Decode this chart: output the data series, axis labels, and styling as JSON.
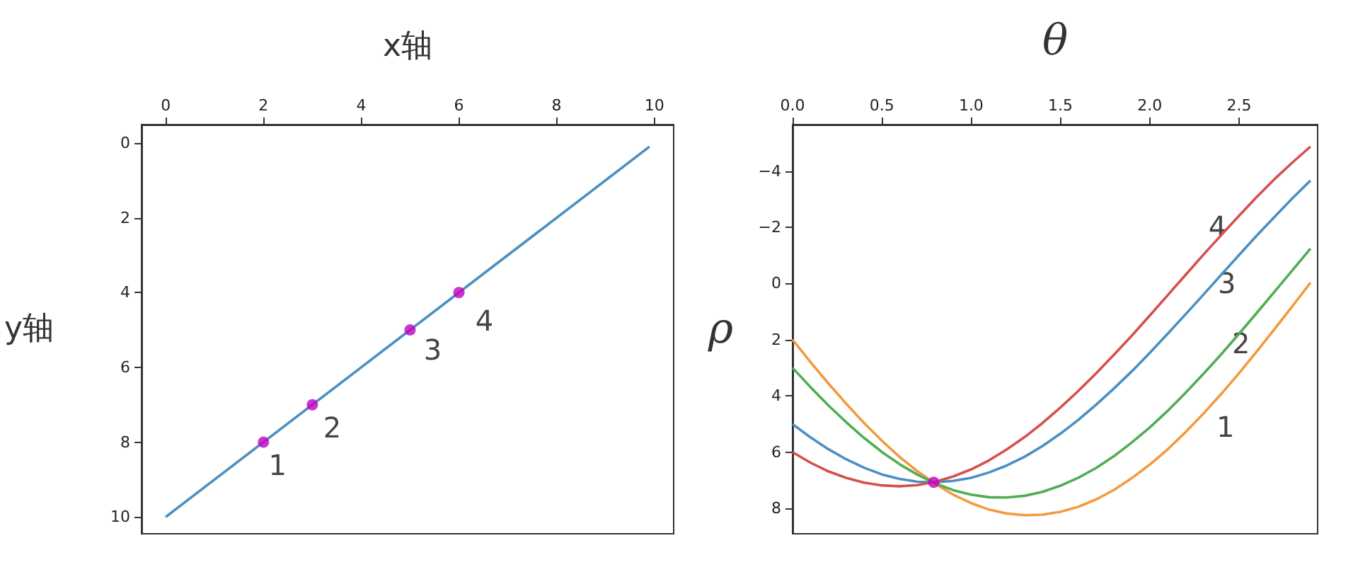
{
  "chart_data": [
    {
      "type": "line",
      "xlabel": "x轴",
      "ylabel": "y轴",
      "xlim": [
        -0.495,
        10.395
      ],
      "ylim": [
        10.45,
        -0.49
      ],
      "xticks": [
        0,
        2,
        4,
        6,
        8,
        10
      ],
      "yticks": [
        0,
        2,
        4,
        6,
        8,
        10
      ],
      "grid": false,
      "series": [
        {
          "color": "#4a90c2",
          "marker": "none",
          "x": [
            0,
            9.9
          ],
          "values": [
            10,
            0.1
          ]
        },
        {
          "type": "scatter",
          "color": "#c000c0",
          "marker": "circle",
          "x": [
            2,
            3,
            5,
            6
          ],
          "values": [
            8,
            7,
            5,
            4
          ]
        }
      ],
      "annotations": [
        {
          "text": "1",
          "x": 2,
          "y": 8
        },
        {
          "text": "2",
          "x": 3,
          "y": 7
        },
        {
          "text": "3",
          "x": 5,
          "y": 5
        },
        {
          "text": "4",
          "x": 6,
          "y": 4
        }
      ]
    },
    {
      "type": "line",
      "xlabel": "θ",
      "ylabel": "ρ",
      "xlim": [
        0,
        2.94
      ],
      "ylim": [
        8.9,
        -5.65
      ],
      "xticks": [
        {
          "value": 0,
          "label": "0.0"
        },
        {
          "value": 0.5,
          "label": "0.5"
        },
        {
          "value": 1,
          "label": "1.0"
        },
        {
          "value": 1.5,
          "label": "1.5"
        },
        {
          "value": 2,
          "label": "2.0"
        },
        {
          "value": 2.5,
          "label": "2.5"
        }
      ],
      "yticks": [
        {
          "value": -4,
          "label": "−4"
        },
        {
          "value": -2,
          "label": "−2"
        },
        0,
        2,
        4,
        6,
        8
      ],
      "grid": false,
      "x": [
        0,
        0.1,
        0.2,
        0.3,
        0.4,
        0.5,
        0.6,
        0.7,
        0.8,
        0.9,
        1.0,
        1.1,
        1.2,
        1.3,
        1.4,
        1.5,
        1.6,
        1.7,
        1.8,
        1.9,
        2.0,
        2.1,
        2.2,
        2.3,
        2.4,
        2.5,
        2.6,
        2.7,
        2.8,
        2.9
      ],
      "series": [
        {
          "color": "#f39a3e",
          "marker": "none",
          "values": [
            2,
            2.79,
            3.55,
            4.27,
            4.96,
            5.59,
            6.17,
            6.68,
            7.13,
            7.51,
            7.81,
            8.04,
            8.18,
            8.24,
            8.22,
            8.12,
            7.94,
            7.68,
            7.34,
            6.92,
            6.44,
            5.9,
            5.29,
            4.63,
            3.93,
            3.19,
            2.41,
            1.61,
            0.8,
            -0.03
          ]
        },
        {
          "color": "#52ad52",
          "marker": "none",
          "values": [
            3,
            3.68,
            4.33,
            4.93,
            5.49,
            5.99,
            6.43,
            6.8,
            7.11,
            7.35,
            7.51,
            7.6,
            7.61,
            7.55,
            7.41,
            7.19,
            6.91,
            6.56,
            6.14,
            5.65,
            5.12,
            4.53,
            3.89,
            3.22,
            2.52,
            1.79,
            1.04,
            0.28,
            -0.48,
            -1.24
          ]
        },
        {
          "color": "#4a90c2",
          "marker": "none",
          "values": [
            5,
            5.47,
            5.89,
            6.25,
            6.55,
            6.79,
            6.95,
            7.05,
            7.07,
            7.02,
            6.91,
            6.72,
            6.47,
            6.16,
            5.78,
            5.34,
            4.85,
            4.31,
            3.73,
            3.12,
            2.47,
            1.79,
            1.1,
            0.4,
            -0.31,
            -1.01,
            -1.71,
            -2.38,
            -3.04,
            -3.66
          ]
        },
        {
          "color": "#d6504c",
          "marker": "none",
          "values": [
            6,
            6.37,
            6.68,
            6.91,
            7.08,
            7.18,
            7.21,
            7.17,
            7.05,
            6.86,
            6.61,
            6.29,
            5.9,
            5.46,
            4.96,
            4.41,
            3.82,
            3.19,
            2.53,
            1.85,
            1.14,
            0.42,
            -0.3,
            -1.02,
            -1.72,
            -2.41,
            -3.08,
            -3.72,
            -4.31,
            -4.87
          ]
        },
        {
          "type": "scatter",
          "color": "#c000c0",
          "marker": "circle",
          "x": [
            0.79
          ],
          "values": [
            7.07
          ]
        }
      ],
      "annotations": [
        {
          "text": "1",
          "x": 2.4,
          "y": 3.93
        },
        {
          "text": "2",
          "x": 2.4,
          "y": 2.52
        },
        {
          "text": "3",
          "x": 2.4,
          "y": -0.31
        },
        {
          "text": "4",
          "x": 2.3,
          "y": -1.02
        }
      ]
    }
  ]
}
